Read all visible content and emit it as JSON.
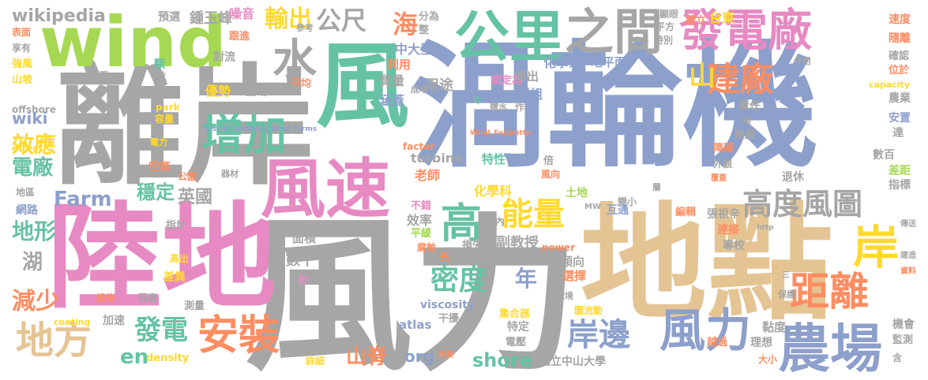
{
  "palette": {
    "gray": "#a6a6a6",
    "blue": "#8da0cb",
    "pink": "#e78ac3",
    "green": "#a6d854",
    "tan": "#e5c494",
    "teal": "#66c2a5",
    "orange": "#fc8d62",
    "yellow": "#ffd92f"
  },
  "words": [
    {
      "text": "渦輪機",
      "color": "blue"
    },
    {
      "text": "離岸",
      "color": "gray"
    },
    {
      "text": "風力",
      "color": "gray"
    },
    {
      "text": "陸地",
      "color": "pink"
    },
    {
      "text": "地點",
      "color": "tan"
    },
    {
      "text": "wind",
      "color": "green"
    },
    {
      "text": "風",
      "color": "teal"
    },
    {
      "text": "風速",
      "color": "pink"
    },
    {
      "text": "公里",
      "color": "teal"
    },
    {
      "text": "之間",
      "color": "gray"
    },
    {
      "text": "發電廠",
      "color": "pink"
    },
    {
      "text": "水",
      "color": "gray"
    },
    {
      "text": "增加",
      "color": "teal"
    },
    {
      "text": "輸出",
      "color": "yellow"
    },
    {
      "text": "海",
      "color": "orange"
    },
    {
      "text": "公尺",
      "color": "gray"
    },
    {
      "text": "建廠",
      "color": "orange"
    },
    {
      "text": "山",
      "color": "yellow"
    },
    {
      "text": "岸",
      "color": "yellow"
    },
    {
      "text": "高度風圖",
      "color": "gray"
    },
    {
      "text": "距離",
      "color": "orange"
    },
    {
      "text": "風力",
      "color": "blue"
    },
    {
      "text": "農場",
      "color": "blue"
    },
    {
      "text": "岸邊",
      "color": "blue"
    },
    {
      "text": "能量",
      "color": "yellow"
    },
    {
      "text": "高",
      "color": "teal"
    },
    {
      "text": "密度",
      "color": "teal"
    },
    {
      "text": "年",
      "color": "blue"
    },
    {
      "text": "安裝",
      "color": "orange"
    },
    {
      "text": "地方",
      "color": "tan"
    },
    {
      "text": "發電",
      "color": "teal"
    },
    {
      "text": "山脊",
      "color": "orange"
    },
    {
      "text": "en",
      "color": "teal"
    },
    {
      "text": "shore",
      "color": "teal"
    },
    {
      "text": "org",
      "color": "blue"
    },
    {
      "text": "Farm",
      "color": "blue"
    },
    {
      "text": "穩定",
      "color": "teal"
    },
    {
      "text": "英國",
      "color": "gray"
    },
    {
      "text": "地形",
      "color": "teal"
    },
    {
      "text": "湖",
      "color": "gray"
    },
    {
      "text": "減少",
      "color": "orange"
    },
    {
      "text": "效應",
      "color": "yellow"
    },
    {
      "text": "電廠",
      "color": "teal"
    },
    {
      "text": "wiki",
      "color": "blue"
    },
    {
      "text": "wikipedia",
      "color": "gray"
    },
    {
      "text": "鍾玉峰",
      "color": "gray"
    },
    {
      "text": "預選",
      "color": "gray"
    },
    {
      "text": "噪音",
      "color": "pink"
    },
    {
      "text": "跟進",
      "color": "orange"
    },
    {
      "text": "參考",
      "color": "gray"
    },
    {
      "text": "分為",
      "color": "gray"
    },
    {
      "text": "整",
      "color": "gray"
    },
    {
      "text": "中大型",
      "color": "blue"
    },
    {
      "text": "利用",
      "color": "orange"
    },
    {
      "text": "質量",
      "color": "gray"
    },
    {
      "text": "成本",
      "color": "gray"
    },
    {
      "text": "用途",
      "color": "gray"
    },
    {
      "text": "涵蓋",
      "color": "blue"
    },
    {
      "text": "平均",
      "color": "orange"
    },
    {
      "text": "區域",
      "color": "gray"
    },
    {
      "text": "優勢",
      "color": "yellow"
    },
    {
      "text": "對流",
      "color": "gray"
    },
    {
      "text": "類",
      "color": "teal"
    },
    {
      "text": "前",
      "color": "gray"
    },
    {
      "text": "兩",
      "color": "gray"
    },
    {
      "text": "表面",
      "color": "orange"
    },
    {
      "text": "強風",
      "color": "yellow"
    },
    {
      "text": "山坡",
      "color": "yellow"
    },
    {
      "text": "享有",
      "color": "gray"
    },
    {
      "text": "offshore",
      "color": "gray"
    },
    {
      "text": "park",
      "color": "yellow"
    },
    {
      "text": "容量",
      "color": "yellow"
    },
    {
      "text": "effect",
      "color": "yellow"
    },
    {
      "text": "電力",
      "color": "yellow"
    },
    {
      "text": "空氣",
      "color": "orange"
    },
    {
      "text": "List_of_onshore_wind_farms",
      "color": "blue"
    },
    {
      "text": "公園",
      "color": "orange"
    },
    {
      "text": "器材",
      "color": "gray"
    },
    {
      "text": "地區",
      "color": "gray"
    },
    {
      "text": "網路",
      "color": "blue"
    },
    {
      "text": "指計",
      "color": "gray"
    },
    {
      "text": "高出",
      "color": "yellow"
    },
    {
      "text": "差異",
      "color": "yellow"
    },
    {
      "text": "維修",
      "color": "orange"
    },
    {
      "text": "因素",
      "color": "gray"
    },
    {
      "text": "測量",
      "color": "gray"
    },
    {
      "text": "加速",
      "color": "gray"
    },
    {
      "text": "coating",
      "color": "yellow"
    },
    {
      "text": "density",
      "color": "yellow"
    },
    {
      "text": "詳細",
      "color": "yellow"
    },
    {
      "text": "丹麥",
      "color": "orange"
    },
    {
      "text": "干擾",
      "color": "gray"
    },
    {
      "text": "atlas",
      "color": "blue"
    },
    {
      "text": "viscosity",
      "color": "blue"
    },
    {
      "text": "做",
      "color": "gray"
    },
    {
      "text": "秒",
      "color": "pink"
    },
    {
      "text": "數十",
      "color": "gray"
    },
    {
      "text": "面積",
      "color": "gray"
    },
    {
      "text": "效率",
      "color": "gray"
    },
    {
      "text": "平緩",
      "color": "green"
    },
    {
      "text": "不錯",
      "color": "pink"
    },
    {
      "text": "腐蝕",
      "color": "orange"
    },
    {
      "text": "先",
      "color": "orange"
    },
    {
      "text": "以內",
      "color": "gray"
    },
    {
      "text": "損失",
      "color": "gray"
    },
    {
      "text": "副教授",
      "color": "gray"
    },
    {
      "text": "化學科",
      "color": "yellow"
    },
    {
      "text": "老師",
      "color": "orange"
    },
    {
      "text": "factor",
      "color": "orange"
    },
    {
      "text": "turbine",
      "color": "gray"
    },
    {
      "text": "特性",
      "color": "teal"
    },
    {
      "text": "Wind_Farmhttp",
      "color": "orange"
    },
    {
      "text": "中",
      "color": "teal"
    },
    {
      "text": "認定為",
      "color": "pink"
    },
    {
      "text": "群組",
      "color": "blue"
    },
    {
      "text": "鹽水",
      "color": "gray"
    },
    {
      "text": "算出",
      "color": "gray"
    },
    {
      "text": "作",
      "color": "gray"
    },
    {
      "text": "化學系",
      "color": "blue"
    },
    {
      "text": "地平面",
      "color": "blue"
    },
    {
      "text": "顯眼",
      "color": "gray"
    },
    {
      "text": "平方",
      "color": "gray"
    },
    {
      "text": "特別",
      "color": "gray"
    },
    {
      "text": "建立",
      "color": "orange"
    },
    {
      "text": "台東",
      "color": "yellow"
    },
    {
      "text": "速度",
      "color": "orange"
    },
    {
      "text": "隨離",
      "color": "orange"
    },
    {
      "text": "確認",
      "color": "gray"
    },
    {
      "text": "位於",
      "color": "orange"
    },
    {
      "text": "capacity",
      "color": "yellow"
    },
    {
      "text": "農業",
      "color": "gray"
    },
    {
      "text": "安置",
      "color": "blue"
    },
    {
      "text": "達",
      "color": "gray"
    },
    {
      "text": "數百",
      "color": "gray"
    },
    {
      "text": "差距",
      "color": "green"
    },
    {
      "text": "指標",
      "color": "gray"
    },
    {
      "text": "責任",
      "color": "gray"
    },
    {
      "text": "作用",
      "color": "gray"
    },
    {
      "text": "夠",
      "color": "gray"
    },
    {
      "text": "熱度",
      "color": "gray"
    },
    {
      "text": "障礙",
      "color": "orange"
    },
    {
      "text": "外觀",
      "color": "gray"
    },
    {
      "text": "覆蓋",
      "color": "orange"
    },
    {
      "text": "退休",
      "color": "gray"
    },
    {
      "text": "層",
      "color": "gray"
    },
    {
      "text": "變小",
      "color": "gray"
    },
    {
      "text": "倍",
      "color": "gray"
    },
    {
      "text": "風向",
      "color": "orange"
    },
    {
      "text": "土地",
      "color": "green"
    },
    {
      "text": "互通",
      "color": "blue"
    },
    {
      "text": "MW",
      "color": "gray"
    },
    {
      "text": "編輯",
      "color": "orange"
    },
    {
      "text": "張祖辛",
      "color": "gray"
    },
    {
      "text": "http",
      "color": "gray"
    },
    {
      "text": "傳送",
      "color": "gray"
    },
    {
      "text": "連接",
      "color": "orange"
    },
    {
      "text": "建造",
      "color": "gray"
    },
    {
      "text": "專校",
      "color": "gray"
    },
    {
      "text": "資料",
      "color": "orange"
    },
    {
      "text": "power",
      "color": "orange"
    },
    {
      "text": "傾向",
      "color": "gray"
    },
    {
      "text": "選擇",
      "color": "orange"
    },
    {
      "text": "三",
      "color": "gray"
    },
    {
      "text": "保護",
      "color": "gray"
    },
    {
      "text": "環境",
      "color": "gray"
    },
    {
      "text": "圖流動",
      "color": "yellow"
    },
    {
      "text": "集合器",
      "color": "yellow"
    },
    {
      "text": "特定",
      "color": "gray"
    },
    {
      "text": "電壓",
      "color": "gray"
    },
    {
      "text": "黏度",
      "color": "gray"
    },
    {
      "text": "理想",
      "color": "gray"
    },
    {
      "text": "越過",
      "color": "orange"
    },
    {
      "text": "大小",
      "color": "orange"
    },
    {
      "text": "機會",
      "color": "gray"
    },
    {
      "text": "監測",
      "color": "gray"
    },
    {
      "text": "含",
      "color": "gray"
    },
    {
      "text": "國立中山大學",
      "color": "gray"
    }
  ]
}
